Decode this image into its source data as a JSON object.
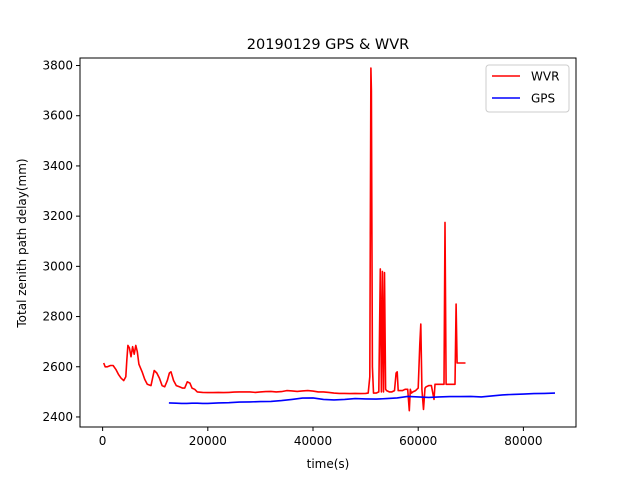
{
  "chart_data": {
    "type": "line",
    "title": "20190129 GPS & WVR",
    "xlabel": "time(s)",
    "ylabel": "Total zenith path delay(mm)",
    "xlim": [
      -4300,
      90000
    ],
    "ylim": [
      2360,
      3830
    ],
    "xticks": [
      0,
      20000,
      40000,
      60000,
      80000
    ],
    "xtick_labels": [
      "0",
      "20000",
      "40000",
      "60000",
      "80000"
    ],
    "yticks": [
      2400,
      2600,
      2800,
      3000,
      3200,
      3400,
      3600,
      3800
    ],
    "ytick_labels": [
      "2400",
      "2600",
      "2800",
      "3000",
      "3200",
      "3400",
      "3600",
      "3800"
    ],
    "grid": false,
    "legend_position": "top-right",
    "series": [
      {
        "name": "WVR",
        "color": "#ff0000",
        "x": [
          200,
          500,
          900,
          1500,
          2000,
          2500,
          3000,
          3500,
          4000,
          4400,
          4600,
          4800,
          5100,
          5400,
          5700,
          6000,
          6300,
          6600,
          6900,
          7500,
          8000,
          8500,
          9200,
          9800,
          10300,
          10800,
          11300,
          11800,
          12300,
          12700,
          13000,
          13500,
          14000,
          14600,
          15200,
          15600,
          16100,
          16600,
          17000,
          17500,
          18000,
          19000,
          20000,
          21000,
          22000,
          23000,
          24000,
          25000,
          26000,
          27000,
          28000,
          29000,
          30000,
          31000,
          32000,
          33000,
          34000,
          35000,
          36000,
          37000,
          38000,
          39000,
          40000,
          41000,
          42000,
          43000,
          44000,
          45000,
          46000,
          47000,
          48000,
          49000,
          50000,
          50500,
          50800,
          51000,
          51100,
          51300,
          51500,
          52000,
          52500,
          52800,
          53000,
          53200,
          53400,
          53600,
          53800,
          54000,
          54500,
          55000,
          55500,
          55800,
          56000,
          56200,
          56400,
          57000,
          57500,
          58000,
          58300,
          58500,
          58700,
          59000,
          59500,
          60000,
          60300,
          60500,
          60700,
          61000,
          61300,
          61500,
          62000,
          62500,
          63000,
          63200,
          63500,
          64000,
          64500,
          64900,
          65100,
          65300,
          65600,
          66000,
          66500,
          67000,
          67200,
          67400,
          67600,
          68000,
          68500,
          69000
        ],
        "values": [
          2615,
          2600,
          2600,
          2605,
          2605,
          2590,
          2570,
          2555,
          2545,
          2560,
          2625,
          2685,
          2675,
          2640,
          2680,
          2650,
          2685,
          2660,
          2610,
          2580,
          2550,
          2530,
          2525,
          2585,
          2575,
          2555,
          2525,
          2520,
          2545,
          2575,
          2580,
          2545,
          2525,
          2520,
          2515,
          2515,
          2540,
          2535,
          2515,
          2510,
          2500,
          2498,
          2497,
          2497,
          2498,
          2497,
          2498,
          2499,
          2500,
          2500,
          2500,
          2498,
          2500,
          2501,
          2502,
          2500,
          2501,
          2505,
          2504,
          2502,
          2504,
          2505,
          2503,
          2500,
          2500,
          2498,
          2495,
          2494,
          2494,
          2493,
          2494,
          2493,
          2494,
          2495,
          2560,
          3790,
          3700,
          2600,
          2495,
          2495,
          2500,
          2990,
          2500,
          2980,
          2500,
          2975,
          2510,
          2505,
          2500,
          2500,
          2505,
          2575,
          2580,
          2505,
          2505,
          2505,
          2510,
          2510,
          2425,
          2510,
          2495,
          2500,
          2505,
          2515,
          2690,
          2770,
          2510,
          2430,
          2515,
          2520,
          2525,
          2525,
          2470,
          2530,
          2530,
          2530,
          2530,
          2530,
          3175,
          2530,
          2530,
          2530,
          2530,
          2530,
          2850,
          2615,
          2615,
          2615,
          2615,
          2615
        ]
      },
      {
        "name": "GPS",
        "color": "#0000ff",
        "x": [
          12600,
          14000,
          15000,
          16000,
          17000,
          18000,
          19000,
          20000,
          22000,
          24000,
          26000,
          28000,
          30000,
          32000,
          34000,
          36000,
          38000,
          40000,
          42000,
          44000,
          46000,
          48000,
          50000,
          52000,
          54000,
          56000,
          58000,
          60000,
          62000,
          64000,
          66000,
          68000,
          70000,
          72000,
          74000,
          76000,
          78000,
          80000,
          82000,
          84000,
          86000
        ],
        "values": [
          2456,
          2455,
          2454,
          2454,
          2455,
          2455,
          2454,
          2454,
          2456,
          2457,
          2459,
          2460,
          2461,
          2462,
          2465,
          2470,
          2475,
          2476,
          2470,
          2468,
          2470,
          2473,
          2472,
          2471,
          2473,
          2476,
          2482,
          2480,
          2478,
          2480,
          2481,
          2481,
          2482,
          2480,
          2484,
          2488,
          2490,
          2491,
          2493,
          2494,
          2495
        ]
      }
    ]
  }
}
